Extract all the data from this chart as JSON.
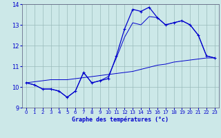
{
  "xlabel": "Graphe des températures (°c)",
  "bg_color": "#cce8e8",
  "line_color": "#0000cc",
  "hours": [
    0,
    1,
    2,
    3,
    4,
    5,
    6,
    7,
    8,
    9,
    10,
    11,
    12,
    13,
    14,
    15,
    16,
    17,
    18,
    19,
    20,
    21,
    22,
    23
  ],
  "temp": [
    10.2,
    10.1,
    9.9,
    9.9,
    9.8,
    9.5,
    9.8,
    10.7,
    10.2,
    10.3,
    10.4,
    11.5,
    12.8,
    13.75,
    13.65,
    13.85,
    13.35,
    13.0,
    13.1,
    13.2,
    13.0,
    12.5,
    11.5,
    11.4
  ],
  "dewpoint": [
    10.2,
    10.1,
    9.9,
    9.9,
    9.8,
    9.5,
    9.8,
    10.7,
    10.2,
    10.3,
    10.5,
    11.4,
    12.4,
    13.1,
    13.0,
    13.4,
    13.35,
    13.0,
    13.1,
    13.2,
    13.0,
    12.5,
    11.5,
    11.4
  ],
  "trend": [
    10.2,
    10.25,
    10.3,
    10.35,
    10.35,
    10.35,
    10.4,
    10.45,
    10.5,
    10.55,
    10.6,
    10.65,
    10.7,
    10.75,
    10.85,
    10.95,
    11.05,
    11.1,
    11.2,
    11.25,
    11.3,
    11.35,
    11.4,
    11.4
  ],
  "ylim": [
    9.0,
    14.0
  ],
  "yticks": [
    9,
    10,
    11,
    12,
    13,
    14
  ],
  "xticks": [
    0,
    1,
    2,
    3,
    4,
    5,
    6,
    7,
    8,
    9,
    10,
    11,
    12,
    13,
    14,
    15,
    16,
    17,
    18,
    19,
    20,
    21,
    22,
    23
  ],
  "grid_color": "#99bbbb"
}
